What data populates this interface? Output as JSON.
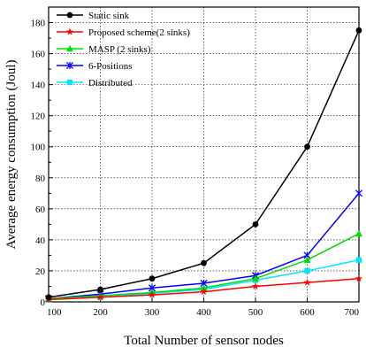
{
  "chart_data": {
    "type": "line",
    "xlabel": "Total Number of sensor nodes",
    "ylabel": "Average energy consumption (Joul)",
    "x": [
      100,
      200,
      300,
      400,
      500,
      600,
      700
    ],
    "xlim": [
      100,
      700
    ],
    "ylim": [
      0,
      190
    ],
    "xticks": [
      100,
      200,
      300,
      400,
      500,
      600,
      700
    ],
    "yticks": [
      0,
      20,
      40,
      60,
      80,
      100,
      120,
      140,
      160,
      180
    ],
    "grid": true,
    "legend_position": "top-left",
    "series": [
      {
        "name": "Static sink",
        "color": "#000000",
        "marker": "circle",
        "values": [
          3,
          8,
          15,
          25,
          50,
          100,
          175
        ]
      },
      {
        "name": "Proposed scheme(2 sinks)",
        "color": "#ff0000",
        "marker": "star",
        "values": [
          1.5,
          3,
          4.5,
          6.5,
          10,
          12.5,
          15
        ]
      },
      {
        "name": "MASP (2 sinks)",
        "color": "#00dd00",
        "marker": "triangle",
        "values": [
          2,
          4,
          6,
          9,
          15,
          27,
          44
        ]
      },
      {
        "name": "6-Positions",
        "color": "#0000ff",
        "marker": "asterisk",
        "values": [
          2,
          5,
          9,
          12,
          17,
          30,
          70
        ]
      },
      {
        "name": "Distributed",
        "color": "#00e5ff",
        "marker": "square",
        "values": [
          1.5,
          3,
          5.5,
          8,
          14,
          20,
          27
        ]
      }
    ]
  }
}
